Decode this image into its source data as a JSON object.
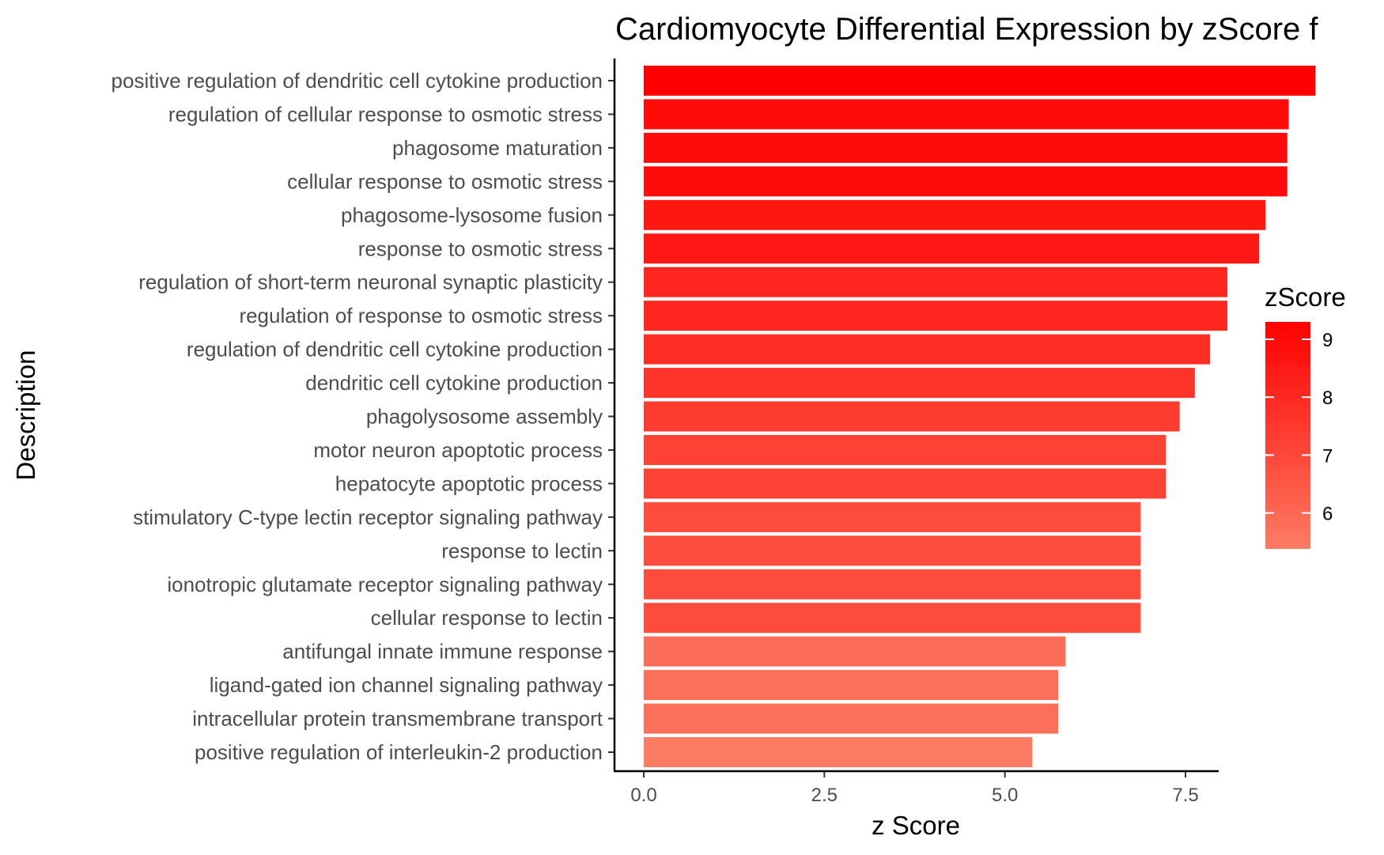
{
  "chart_data": {
    "type": "bar",
    "orientation": "horizontal",
    "title": "Cardiomyocyte Differential Expression by zScore f",
    "xlabel": "z Score",
    "ylabel": "Description",
    "xlim": [
      -0.5,
      9.8
    ],
    "x_ticks": [
      "0.0",
      "2.5",
      "5.0",
      "7.5"
    ],
    "x_tick_values": [
      0,
      2.5,
      5.0,
      7.5
    ],
    "categories": [
      "positive regulation of dendritic cell cytokine production",
      "regulation of cellular response to osmotic stress",
      "phagosome maturation",
      "cellular response to osmotic stress",
      "phagosome-lysosome fusion",
      "response to osmotic stress",
      "regulation of short-term neuronal synaptic plasticity",
      "regulation of response to osmotic stress",
      "regulation of dendritic cell cytokine production",
      "dendritic cell cytokine production",
      "phagolysosome assembly",
      "motor neuron apoptotic process",
      "hepatocyte apoptotic process",
      "stimulatory C-type lectin receptor signaling pathway",
      "response to lectin",
      "ionotropic glutamate receptor signaling pathway",
      "cellular response to lectin",
      "antifungal innate immune response",
      "ligand-gated ion channel signaling pathway",
      "intracellular protein transmembrane transport",
      "positive regulation of interleukin-2 production"
    ],
    "values": [
      9.3,
      8.93,
      8.91,
      8.91,
      8.61,
      8.52,
      8.08,
      8.08,
      7.84,
      7.63,
      7.42,
      7.23,
      7.23,
      6.88,
      6.88,
      6.88,
      6.88,
      5.84,
      5.74,
      5.74,
      5.38
    ],
    "legend": {
      "title": "zScore",
      "placement": "right",
      "range": [
        5.38,
        9.3
      ],
      "ticks": [
        "6",
        "7",
        "8",
        "9"
      ],
      "tick_values": [
        6,
        7,
        8,
        9
      ],
      "color_low": "#fc7b63",
      "color_high": "#ff0000"
    },
    "grid": false
  }
}
